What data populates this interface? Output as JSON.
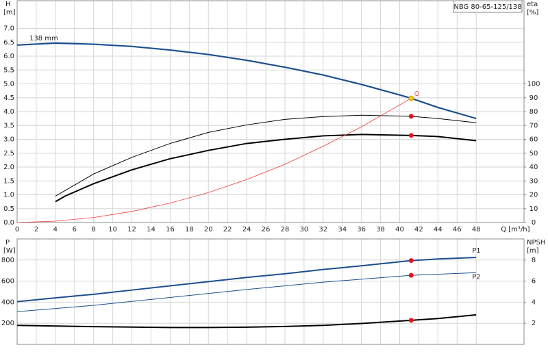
{
  "chart_data": [
    {
      "type": "line",
      "title": "NBG 80-65-125/138",
      "xlabel": "Q [m³/h]",
      "ylabel": "H",
      "yunit": "[m]",
      "y2label": "eta",
      "y2unit": "[%]",
      "xlim": [
        0,
        53
      ],
      "xticks": [
        0,
        2,
        4,
        6,
        8,
        10,
        12,
        14,
        16,
        18,
        20,
        22,
        24,
        26,
        28,
        30,
        32,
        34,
        36,
        38,
        40,
        42,
        44,
        46,
        48
      ],
      "ylim": [
        0,
        8
      ],
      "yticks": [
        {
          "value": 0,
          "label": "0.0"
        },
        0.5,
        {
          "value": 1,
          "label": "1.0"
        },
        1.5,
        {
          "value": 2,
          "label": "2.0"
        },
        2.5,
        {
          "value": 3,
          "label": "3.0"
        },
        3.5,
        {
          "value": 4,
          "label": "4.0"
        },
        4.5,
        {
          "value": 5,
          "label": "5.0"
        },
        5.5,
        {
          "value": 6,
          "label": "6.0"
        },
        6.5,
        {
          "value": 7,
          "label": "7.0"
        }
      ],
      "y2lim": [
        0,
        160
      ],
      "y2ticks": [
        0,
        10,
        20,
        30,
        40,
        50,
        60,
        70,
        80,
        90,
        100
      ],
      "grid": true,
      "series": [
        {
          "name": "138 mm",
          "color": "#1c4f8f",
          "line_width": 2.2,
          "x": [
            0,
            4,
            6,
            8,
            12,
            16,
            20,
            24,
            28,
            32,
            36,
            40,
            41.2,
            44,
            48
          ],
          "values": [
            6.4,
            6.47,
            6.45,
            6.43,
            6.35,
            6.22,
            6.06,
            5.85,
            5.6,
            5.32,
            4.98,
            4.6,
            4.48,
            4.15,
            3.75
          ]
        },
        {
          "color": "#000000",
          "line_width": 1,
          "axis": "y2",
          "x": [
            4,
            8,
            12,
            16,
            20,
            24,
            28,
            32,
            36,
            41.2,
            44,
            48
          ],
          "values": [
            19,
            35,
            47,
            57,
            65,
            70.4,
            74.4,
            76.4,
            77.4,
            76.6,
            75,
            72
          ]
        },
        {
          "color": "#000000",
          "line_width": 2,
          "axis": "y2",
          "x": [
            4,
            5,
            8,
            12,
            16,
            20,
            24,
            28,
            32,
            36,
            41.2,
            44,
            48
          ],
          "values": [
            15,
            19,
            28,
            38,
            46,
            52,
            57,
            60,
            62.5,
            63.5,
            62.8,
            62,
            59
          ]
        },
        {
          "color": "#f03a3a",
          "line_width": 0.8,
          "x": [
            0,
            4,
            8,
            12,
            16,
            20,
            24,
            28,
            32,
            36,
            41.2
          ],
          "values": [
            0,
            0.05,
            0.18,
            0.4,
            0.7,
            1.08,
            1.55,
            2.1,
            2.75,
            3.45,
            4.48
          ]
        }
      ],
      "markers": [
        {
          "x": 41.2,
          "y": 4.48,
          "color": "#f5c400"
        },
        {
          "x": 41.8,
          "y": 4.65,
          "color": "#f03a3a",
          "hollow": true
        },
        {
          "x": 41.2,
          "y": 76.6,
          "axis": "y2",
          "color": "#e8141c"
        },
        {
          "x": 41.2,
          "y": 62.8,
          "axis": "y2",
          "color": "#e8141c"
        }
      ]
    },
    {
      "type": "line",
      "ylabel": "P",
      "yunit": "[W]",
      "y2label": "NPSH",
      "y2unit": "[m]",
      "xlim": [
        0,
        53
      ],
      "ylim": [
        0,
        1000
      ],
      "yticks": [
        200,
        400,
        600,
        800
      ],
      "y2lim": [
        0,
        10
      ],
      "y2ticks": [
        2,
        4,
        6,
        8
      ],
      "grid": true,
      "series": [
        {
          "name": "P1",
          "color": "#1c4f8f",
          "line_width": 2,
          "x": [
            0,
            5,
            8,
            12,
            16,
            20,
            24,
            28,
            32,
            36,
            41.2,
            44,
            48
          ],
          "values": [
            405,
            450,
            475,
            515,
            555,
            595,
            635,
            670,
            710,
            745,
            795,
            810,
            825
          ]
        },
        {
          "name": "P2",
          "color": "#1c4f8f",
          "line_width": 1,
          "x": [
            0,
            8,
            16,
            24,
            32,
            41.2,
            48
          ],
          "values": [
            310,
            370,
            445,
            520,
            590,
            655,
            680
          ]
        },
        {
          "color": "#000000",
          "line_width": 2,
          "axis": "y2",
          "x": [
            0,
            8,
            16,
            20,
            24,
            28,
            32,
            36,
            41.2,
            44,
            48
          ],
          "values": [
            1.8,
            1.68,
            1.6,
            1.6,
            1.63,
            1.7,
            1.8,
            1.98,
            2.28,
            2.45,
            2.8
          ]
        }
      ],
      "markers": [
        {
          "x": 41.2,
          "y": 795,
          "color": "#e8141c"
        },
        {
          "x": 41.2,
          "y": 655,
          "color": "#e8141c"
        },
        {
          "x": 41.2,
          "y": 2.28,
          "axis": "y2",
          "color": "#e8141c"
        }
      ]
    }
  ]
}
